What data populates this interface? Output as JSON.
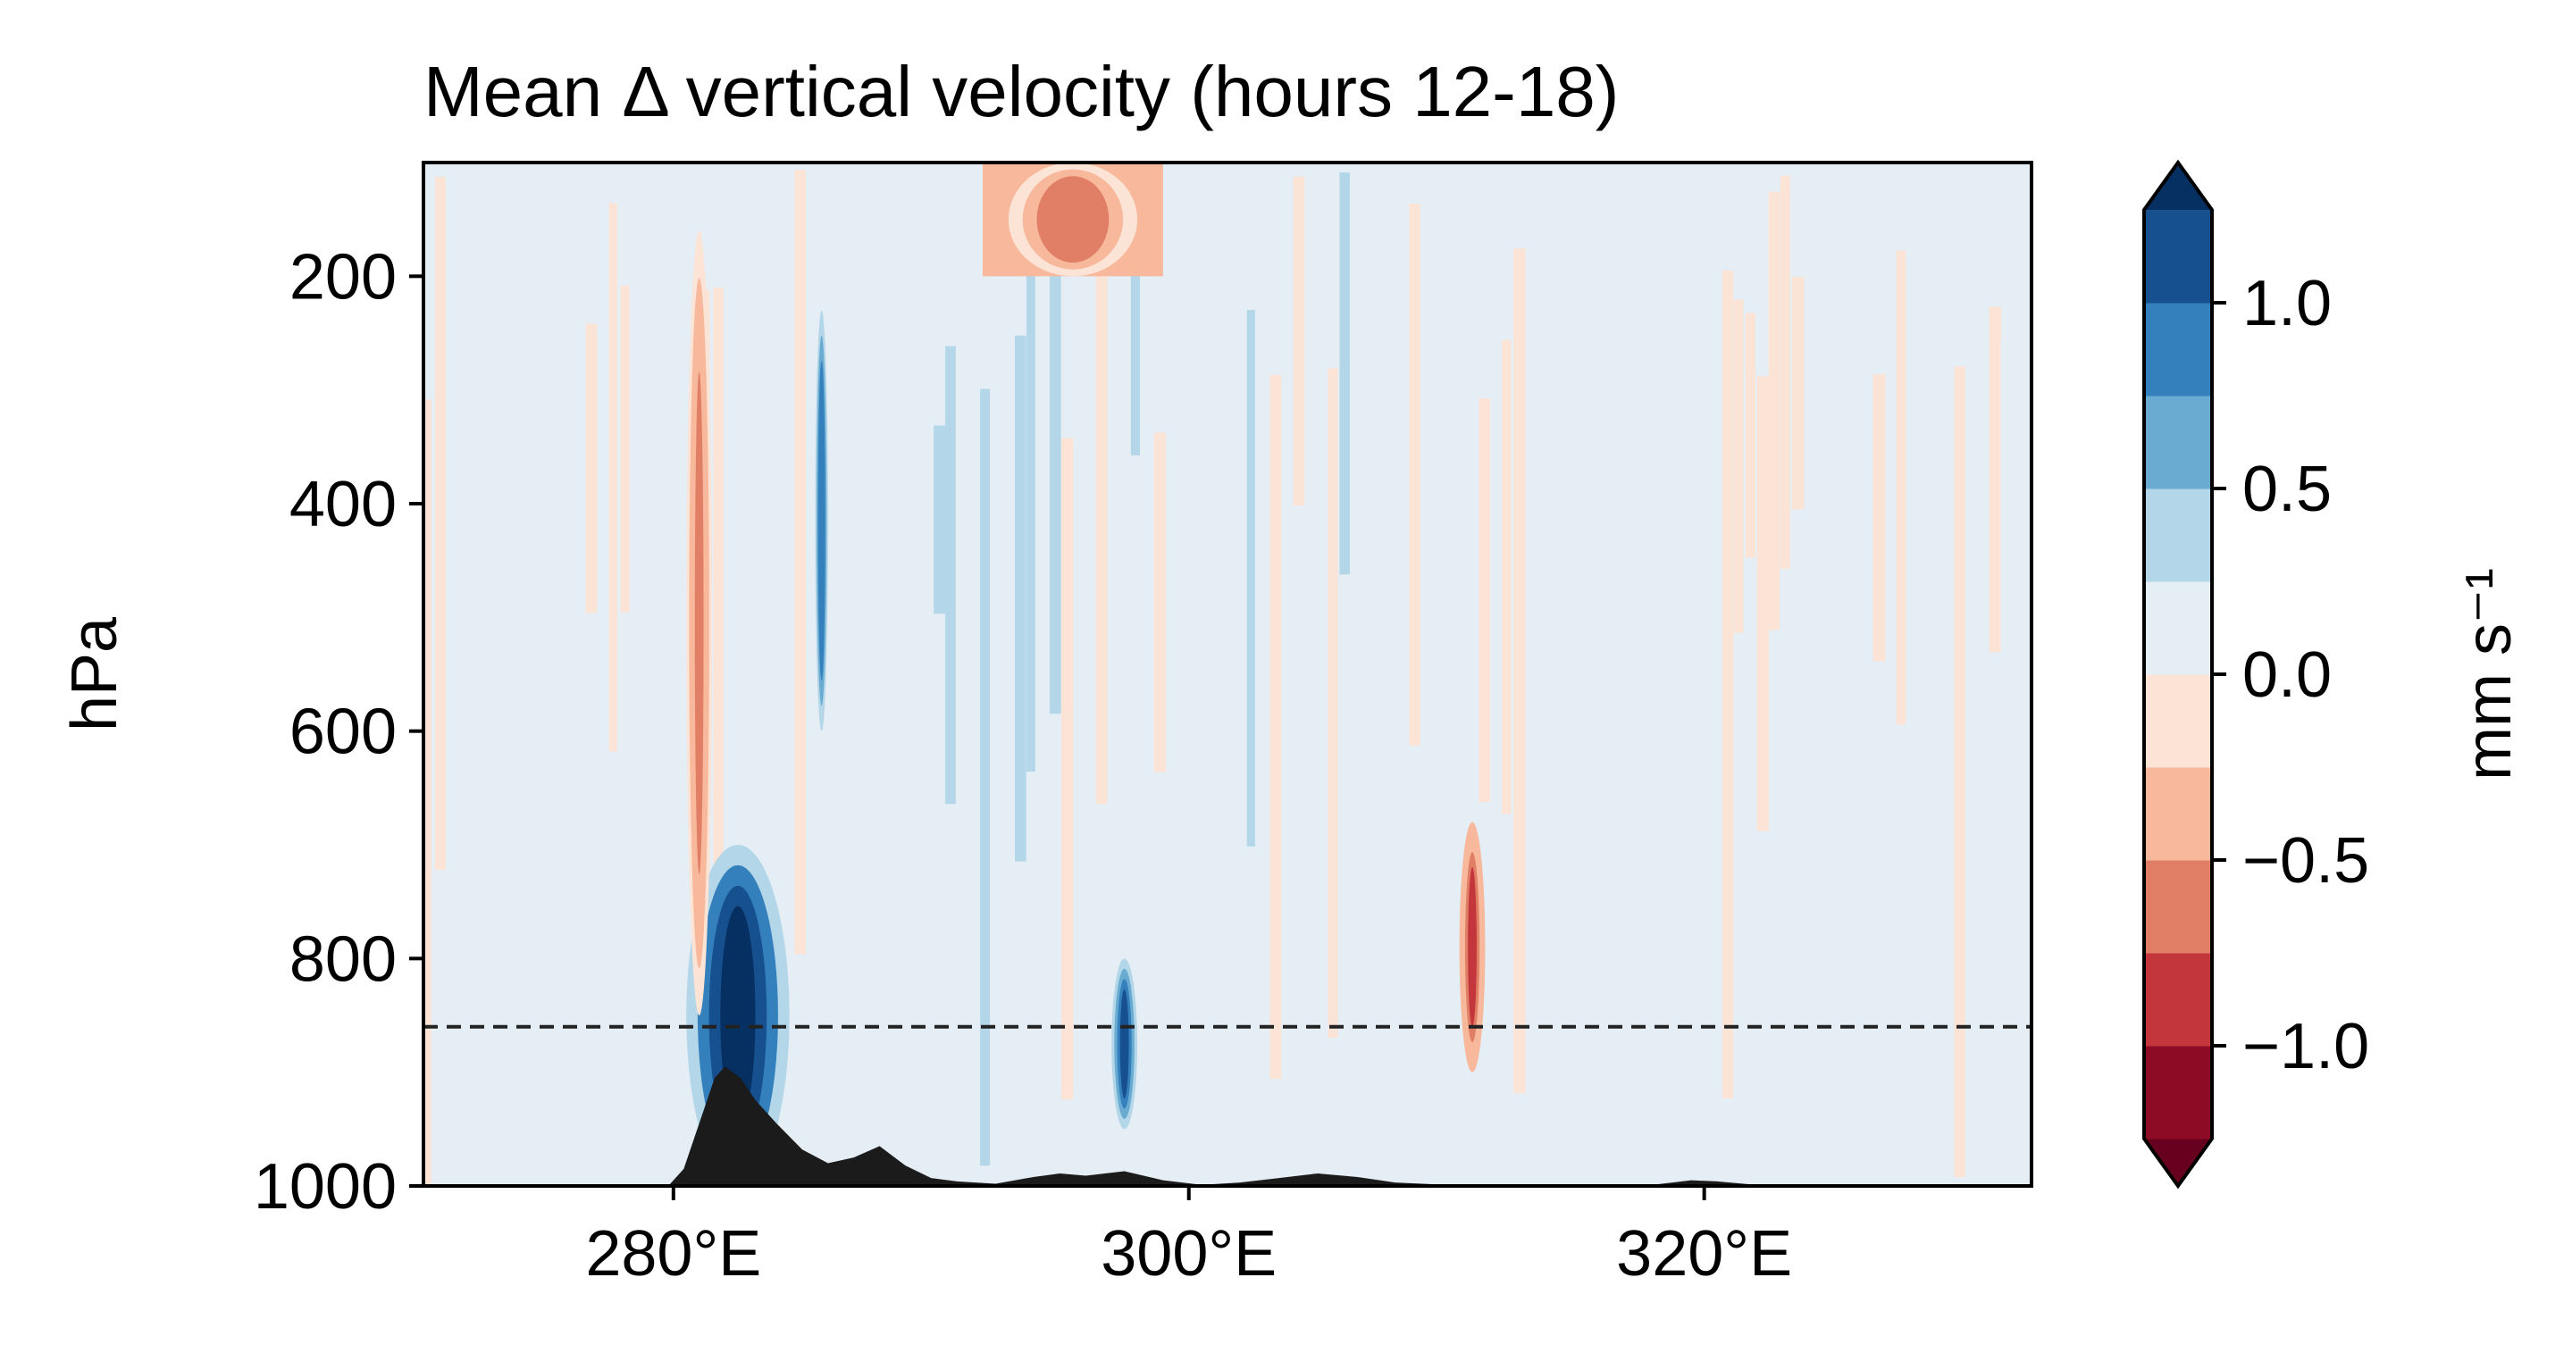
{
  "chart_data": {
    "type": "heatmap",
    "subtype": "filled-contour",
    "title": "Mean Δ vertical velocity (hours 12-18)",
    "xlabel": "",
    "ylabel": "hPa",
    "xlim": [
      270.3,
      332.7
    ],
    "ylim": [
      1000,
      100
    ],
    "y_inverted": true,
    "xticks": [
      280,
      300,
      320
    ],
    "xtick_labels": [
      "280°E",
      "300°E",
      "320°E"
    ],
    "yticks": [
      200,
      400,
      600,
      800,
      1000
    ],
    "ytick_labels": [
      "200",
      "400",
      "600",
      "800",
      "1000"
    ],
    "colormap": "RdBu",
    "colorbar": {
      "label": "mm s⁻¹",
      "levels": [
        -1.25,
        -1.0,
        -0.75,
        -0.5,
        -0.25,
        0.0,
        0.25,
        0.5,
        0.75,
        1.0,
        1.25
      ],
      "ticks": [
        -1.0,
        -0.5,
        0.0,
        0.5,
        1.0
      ],
      "tick_labels": [
        "−1.0",
        "−0.5",
        "0.0",
        "0.5",
        "1.0"
      ],
      "extend": "both",
      "colors": [
        "#67001f",
        "#8e0b25",
        "#c3373c",
        "#e07f66",
        "#f7b89c",
        "#fbe3d6",
        "#e5eef5",
        "#b3d6e8",
        "#6aabd2",
        "#3480bc",
        "#17508e",
        "#053061"
      ]
    },
    "reference_line": {
      "y": 860,
      "style": "dashed",
      "color": "#222222"
    },
    "terrain": {
      "color": "#1b1b1b",
      "lon": [
        279.8,
        280.4,
        281.0,
        281.6,
        282.0,
        282.6,
        283.2,
        284.0,
        285.0,
        286.0,
        287.0,
        288.0,
        289.0,
        290.0,
        291.0,
        292.5,
        294.0,
        295.0,
        296.0,
        297.5,
        299.0,
        300.5,
        302.0,
        303.5,
        305.0,
        306.5,
        308.0,
        310.0,
        312.0,
        314.0,
        316.0,
        318.0,
        319.5,
        320.5,
        322.0,
        324.0
      ],
      "p": [
        1000,
        985,
        945,
        905,
        895,
        905,
        925,
        945,
        968,
        980,
        975,
        965,
        982,
        993,
        996,
        998,
        992,
        989,
        991,
        987,
        995,
        999,
        997,
        993,
        989,
        992,
        997,
        999,
        1000,
        999,
        1000,
        999,
        995,
        996,
        999,
        1000
      ]
    },
    "features": [
      {
        "type": "updraft",
        "lon": [
          280.5,
          284.5
        ],
        "p": [
          700,
          1000
        ],
        "value": 1.3
      },
      {
        "type": "updraft",
        "lon": [
          285.5,
          286.0
        ],
        "p": [
          230,
          600
        ],
        "value": 1.0
      },
      {
        "type": "downdraft",
        "lon": [
          280.5,
          281.5
        ],
        "p": [
          160,
          850
        ],
        "value": -0.5
      },
      {
        "type": "downdraft",
        "lon": [
          310.5,
          311.5
        ],
        "p": [
          680,
          900
        ],
        "value": -0.8
      },
      {
        "type": "downdraft",
        "lon": [
          293.0,
          298.0
        ],
        "p": [
          100,
          200
        ],
        "value": -0.6
      },
      {
        "type": "updraft",
        "lon": [
          297.0,
          298.0
        ],
        "p": [
          800,
          950
        ],
        "value": 1.1
      }
    ]
  }
}
